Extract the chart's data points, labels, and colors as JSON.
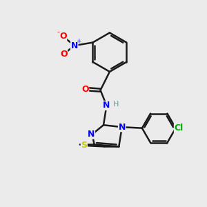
{
  "background_color": "#ebebeb",
  "bond_color": "#1a1a1a",
  "atom_colors": {
    "N": "#0000ff",
    "O": "#ff0000",
    "S": "#cccc00",
    "Cl": "#00aa00",
    "H": "#5f9ea0",
    "C": "#1a1a1a"
  },
  "font_size": 8.5,
  "figsize": [
    3.0,
    3.0
  ],
  "dpi": 100
}
